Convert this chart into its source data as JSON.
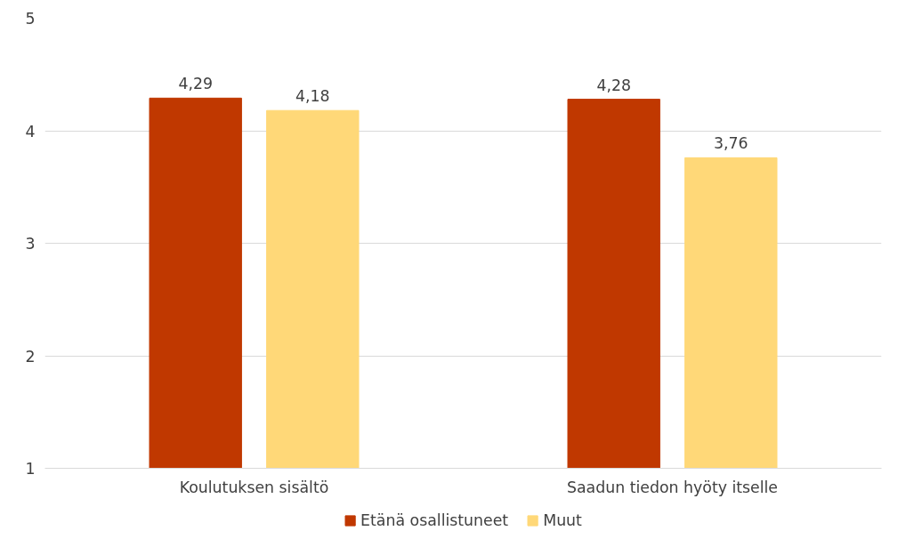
{
  "chart_data": {
    "type": "bar",
    "categories": [
      "Koulutuksen sisältö",
      "Saadun tiedon hyöty itselle"
    ],
    "series": [
      {
        "name": "Etänä osallistuneet",
        "color": "#c03800",
        "values": [
          4.29,
          4.28
        ],
        "value_labels": [
          "4,29",
          "4,28"
        ]
      },
      {
        "name": "Muut",
        "color": "#ffd878",
        "values": [
          4.18,
          3.76
        ],
        "value_labels": [
          "4,18",
          "3,76"
        ]
      }
    ],
    "ylim": [
      1,
      5
    ],
    "yticks": [
      1,
      2,
      3,
      4,
      5
    ],
    "grid": "y",
    "legend": "bottom"
  }
}
